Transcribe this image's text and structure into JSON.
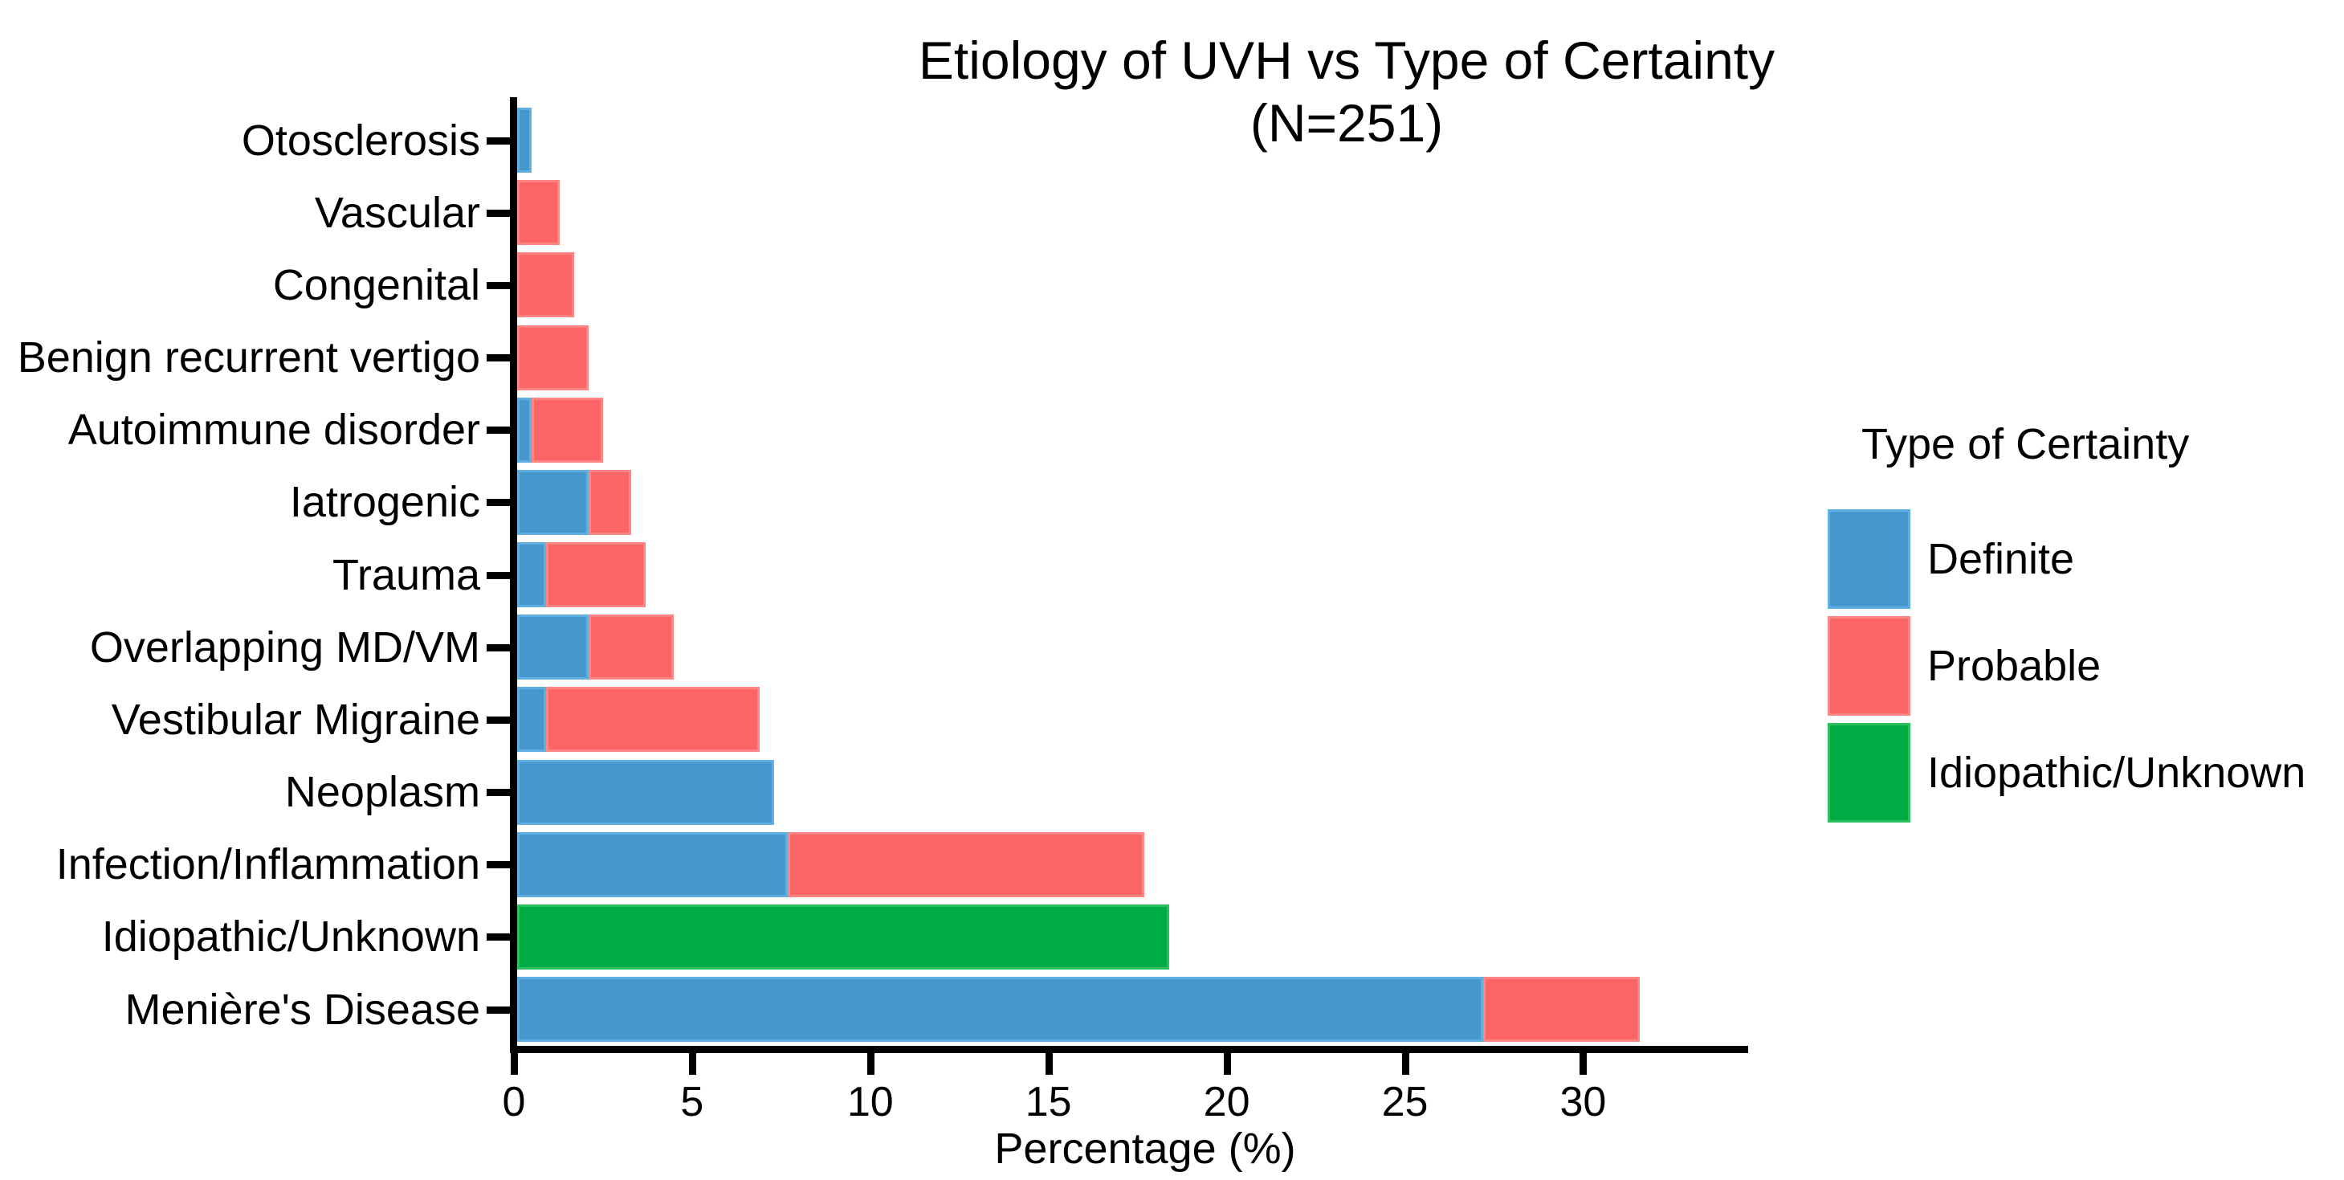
{
  "title": {
    "line1": "Etiology of UVH vs Type of Certainty",
    "line2": "(N=251)"
  },
  "x_axis": {
    "label": "Percentage (%)",
    "tick_labels": [
      "0",
      "5",
      "10",
      "15",
      "20",
      "25",
      "30"
    ]
  },
  "legend": {
    "title": "Type of Certainty",
    "items": [
      {
        "label": "Definite",
        "color": "#4597CC",
        "border": "#5FB0E0"
      },
      {
        "label": "Probable",
        "color": "#FC6566",
        "border": "#FF8585"
      },
      {
        "label": "Idiopathic/Unknown",
        "color": "#00AD44",
        "border": "#2BC15F"
      }
    ]
  },
  "chart_data": {
    "type": "bar",
    "orientation": "horizontal",
    "stacked": true,
    "title": "Etiology of UVH vs Type of Certainty (N=251)",
    "n_total": 251,
    "xlabel": "Percentage (%)",
    "ylabel": "",
    "xlim": [
      0,
      34.6
    ],
    "x_ticks": [
      0,
      5,
      10,
      15,
      20,
      25,
      30
    ],
    "grid": false,
    "legend_title": "Type of Certainty",
    "legend_position": "right",
    "categories_top_to_bottom": [
      "Otosclerosis",
      "Vascular",
      "Congenital",
      "Benign recurrent vertigo",
      "Autoimmune disorder",
      "Iatrogenic",
      "Trauma",
      "Overlapping MD/VM",
      "Vestibular Migraine",
      "Neoplasm",
      "Infection/Inflammation",
      "Idiopathic/Unknown",
      "Menière's Disease"
    ],
    "series": [
      {
        "name": "Definite",
        "color": "#4597CC",
        "border": "#5FB0E0",
        "values": [
          0.4,
          0,
          0,
          0,
          0.4,
          2.0,
          0.8,
          2.0,
          0.8,
          7.2,
          7.6,
          0,
          27.1
        ]
      },
      {
        "name": "Probable",
        "color": "#FC6566",
        "border": "#FF8585",
        "values": [
          0,
          1.2,
          1.6,
          2.0,
          2.0,
          1.2,
          2.8,
          2.4,
          6.0,
          0,
          10.0,
          0,
          4.4
        ]
      },
      {
        "name": "Idiopathic/Unknown",
        "color": "#00AD44",
        "border": "#2BC15F",
        "values": [
          0,
          0,
          0,
          0,
          0,
          0,
          0,
          0,
          0,
          0,
          0,
          18.3,
          0
        ]
      }
    ]
  }
}
